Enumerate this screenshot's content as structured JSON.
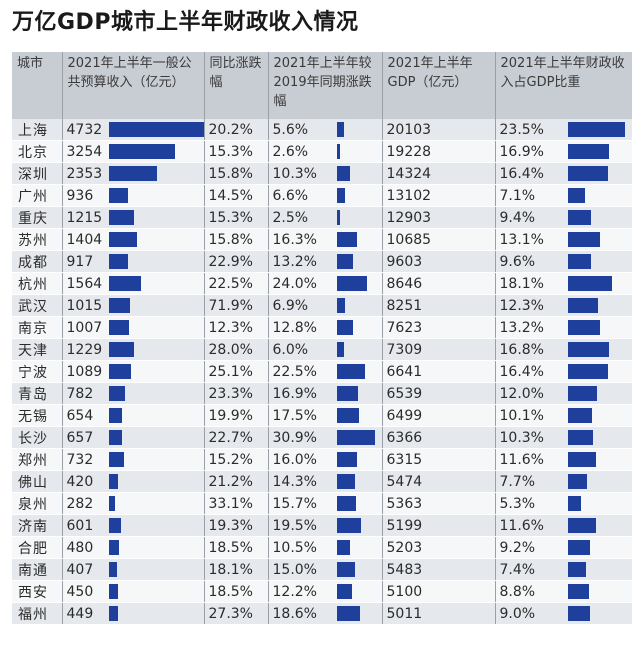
{
  "title": "万亿GDP城市上半年财政收入情况",
  "headers": {
    "city": "城市",
    "revenue": "2021年上半年一般公共预算收入（亿元）",
    "yoy": "同比涨跌幅",
    "vs2019": "2021年上半年较2019年同期涨跌幅",
    "gdp": "2021年上半年GDP（亿元）",
    "ratio": "2021年上半年财政收入占GDP比重"
  },
  "colors": {
    "bar": "#1f3f9c",
    "header_bg": "#c8ccd3",
    "row_odd": "#e5e8ed",
    "row_even": "#f6f7f9"
  },
  "chart_data": {
    "type": "table",
    "columns": [
      "城市",
      "2021年上半年一般公共预算收入（亿元）",
      "同比涨跌幅",
      "2021年上半年较2019年同期涨跌幅",
      "2021年上半年GDP（亿元）",
      "2021年上半年财政收入占GDP比重"
    ],
    "rows": [
      {
        "city": "上海",
        "revenue": "4732",
        "yoy": "20.2%",
        "vs2019": "5.6%",
        "gdp": "20103",
        "ratio": "23.5%",
        "revenue_v": 4732,
        "vs2019_v": 5.6,
        "ratio_v": 23.5
      },
      {
        "city": "北京",
        "revenue": "3254",
        "yoy": "15.3%",
        "vs2019": "2.6%",
        "gdp": "19228",
        "ratio": "16.9%",
        "revenue_v": 3254,
        "vs2019_v": 2.6,
        "ratio_v": 16.9
      },
      {
        "city": "深圳",
        "revenue": "2353",
        "yoy": "15.8%",
        "vs2019": "10.3%",
        "gdp": "14324",
        "ratio": "16.4%",
        "revenue_v": 2353,
        "vs2019_v": 10.3,
        "ratio_v": 16.4
      },
      {
        "city": "广州",
        "revenue": "936",
        "yoy": "14.5%",
        "vs2019": "6.6%",
        "gdp": "13102",
        "ratio": "7.1%",
        "revenue_v": 936,
        "vs2019_v": 6.6,
        "ratio_v": 7.1
      },
      {
        "city": "重庆",
        "revenue": "1215",
        "yoy": "15.3%",
        "vs2019": "2.5%",
        "gdp": "12903",
        "ratio": "9.4%",
        "revenue_v": 1215,
        "vs2019_v": 2.5,
        "ratio_v": 9.4
      },
      {
        "city": "苏州",
        "revenue": "1404",
        "yoy": "15.8%",
        "vs2019": "16.3%",
        "gdp": "10685",
        "ratio": "13.1%",
        "revenue_v": 1404,
        "vs2019_v": 16.3,
        "ratio_v": 13.1
      },
      {
        "city": "成都",
        "revenue": "917",
        "yoy": "22.9%",
        "vs2019": "13.2%",
        "gdp": "9603",
        "ratio": "9.6%",
        "revenue_v": 917,
        "vs2019_v": 13.2,
        "ratio_v": 9.6
      },
      {
        "city": "杭州",
        "revenue": "1564",
        "yoy": "22.5%",
        "vs2019": "24.0%",
        "gdp": "8646",
        "ratio": "18.1%",
        "revenue_v": 1564,
        "vs2019_v": 24.0,
        "ratio_v": 18.1
      },
      {
        "city": "武汉",
        "revenue": "1015",
        "yoy": "71.9%",
        "vs2019": "6.9%",
        "gdp": "8251",
        "ratio": "12.3%",
        "revenue_v": 1015,
        "vs2019_v": 6.9,
        "ratio_v": 12.3
      },
      {
        "city": "南京",
        "revenue": "1007",
        "yoy": "12.3%",
        "vs2019": "12.8%",
        "gdp": "7623",
        "ratio": "13.2%",
        "revenue_v": 1007,
        "vs2019_v": 12.8,
        "ratio_v": 13.2
      },
      {
        "city": "天津",
        "revenue": "1229",
        "yoy": "28.0%",
        "vs2019": "6.0%",
        "gdp": "7309",
        "ratio": "16.8%",
        "revenue_v": 1229,
        "vs2019_v": 6.0,
        "ratio_v": 16.8
      },
      {
        "city": "宁波",
        "revenue": "1089",
        "yoy": "25.1%",
        "vs2019": "22.5%",
        "gdp": "6641",
        "ratio": "16.4%",
        "revenue_v": 1089,
        "vs2019_v": 22.5,
        "ratio_v": 16.4
      },
      {
        "city": "青岛",
        "revenue": "782",
        "yoy": "23.3%",
        "vs2019": "16.9%",
        "gdp": "6539",
        "ratio": "12.0%",
        "revenue_v": 782,
        "vs2019_v": 16.9,
        "ratio_v": 12.0
      },
      {
        "city": "无锡",
        "revenue": "654",
        "yoy": "19.9%",
        "vs2019": "17.5%",
        "gdp": "6499",
        "ratio": "10.1%",
        "revenue_v": 654,
        "vs2019_v": 17.5,
        "ratio_v": 10.1
      },
      {
        "city": "长沙",
        "revenue": "657",
        "yoy": "22.7%",
        "vs2019": "30.9%",
        "gdp": "6366",
        "ratio": "10.3%",
        "revenue_v": 657,
        "vs2019_v": 30.9,
        "ratio_v": 10.3
      },
      {
        "city": "郑州",
        "revenue": "732",
        "yoy": "15.2%",
        "vs2019": "16.0%",
        "gdp": "6315",
        "ratio": "11.6%",
        "revenue_v": 732,
        "vs2019_v": 16.0,
        "ratio_v": 11.6
      },
      {
        "city": "佛山",
        "revenue": "420",
        "yoy": "21.2%",
        "vs2019": "14.3%",
        "gdp": "5474",
        "ratio": "7.7%",
        "revenue_v": 420,
        "vs2019_v": 14.3,
        "ratio_v": 7.7
      },
      {
        "city": "泉州",
        "revenue": "282",
        "yoy": "33.1%",
        "vs2019": "15.7%",
        "gdp": "5363",
        "ratio": "5.3%",
        "revenue_v": 282,
        "vs2019_v": 15.7,
        "ratio_v": 5.3
      },
      {
        "city": "济南",
        "revenue": "601",
        "yoy": "19.3%",
        "vs2019": "19.5%",
        "gdp": "5199",
        "ratio": "11.6%",
        "revenue_v": 601,
        "vs2019_v": 19.5,
        "ratio_v": 11.6
      },
      {
        "city": "合肥",
        "revenue": "480",
        "yoy": "18.5%",
        "vs2019": "10.5%",
        "gdp": "5203",
        "ratio": "9.2%",
        "revenue_v": 480,
        "vs2019_v": 10.5,
        "ratio_v": 9.2
      },
      {
        "city": "南通",
        "revenue": "407",
        "yoy": "18.1%",
        "vs2019": "15.0%",
        "gdp": "5483",
        "ratio": "7.4%",
        "revenue_v": 407,
        "vs2019_v": 15.0,
        "ratio_v": 7.4
      },
      {
        "city": "西安",
        "revenue": "450",
        "yoy": "18.5%",
        "vs2019": "12.2%",
        "gdp": "5100",
        "ratio": "8.8%",
        "revenue_v": 450,
        "vs2019_v": 12.2,
        "ratio_v": 8.8
      },
      {
        "city": "福州",
        "revenue": "449",
        "yoy": "27.3%",
        "vs2019": "18.6%",
        "gdp": "5011",
        "ratio": "9.0%",
        "revenue_v": 449,
        "vs2019_v": 18.6,
        "ratio_v": 9.0
      }
    ]
  }
}
